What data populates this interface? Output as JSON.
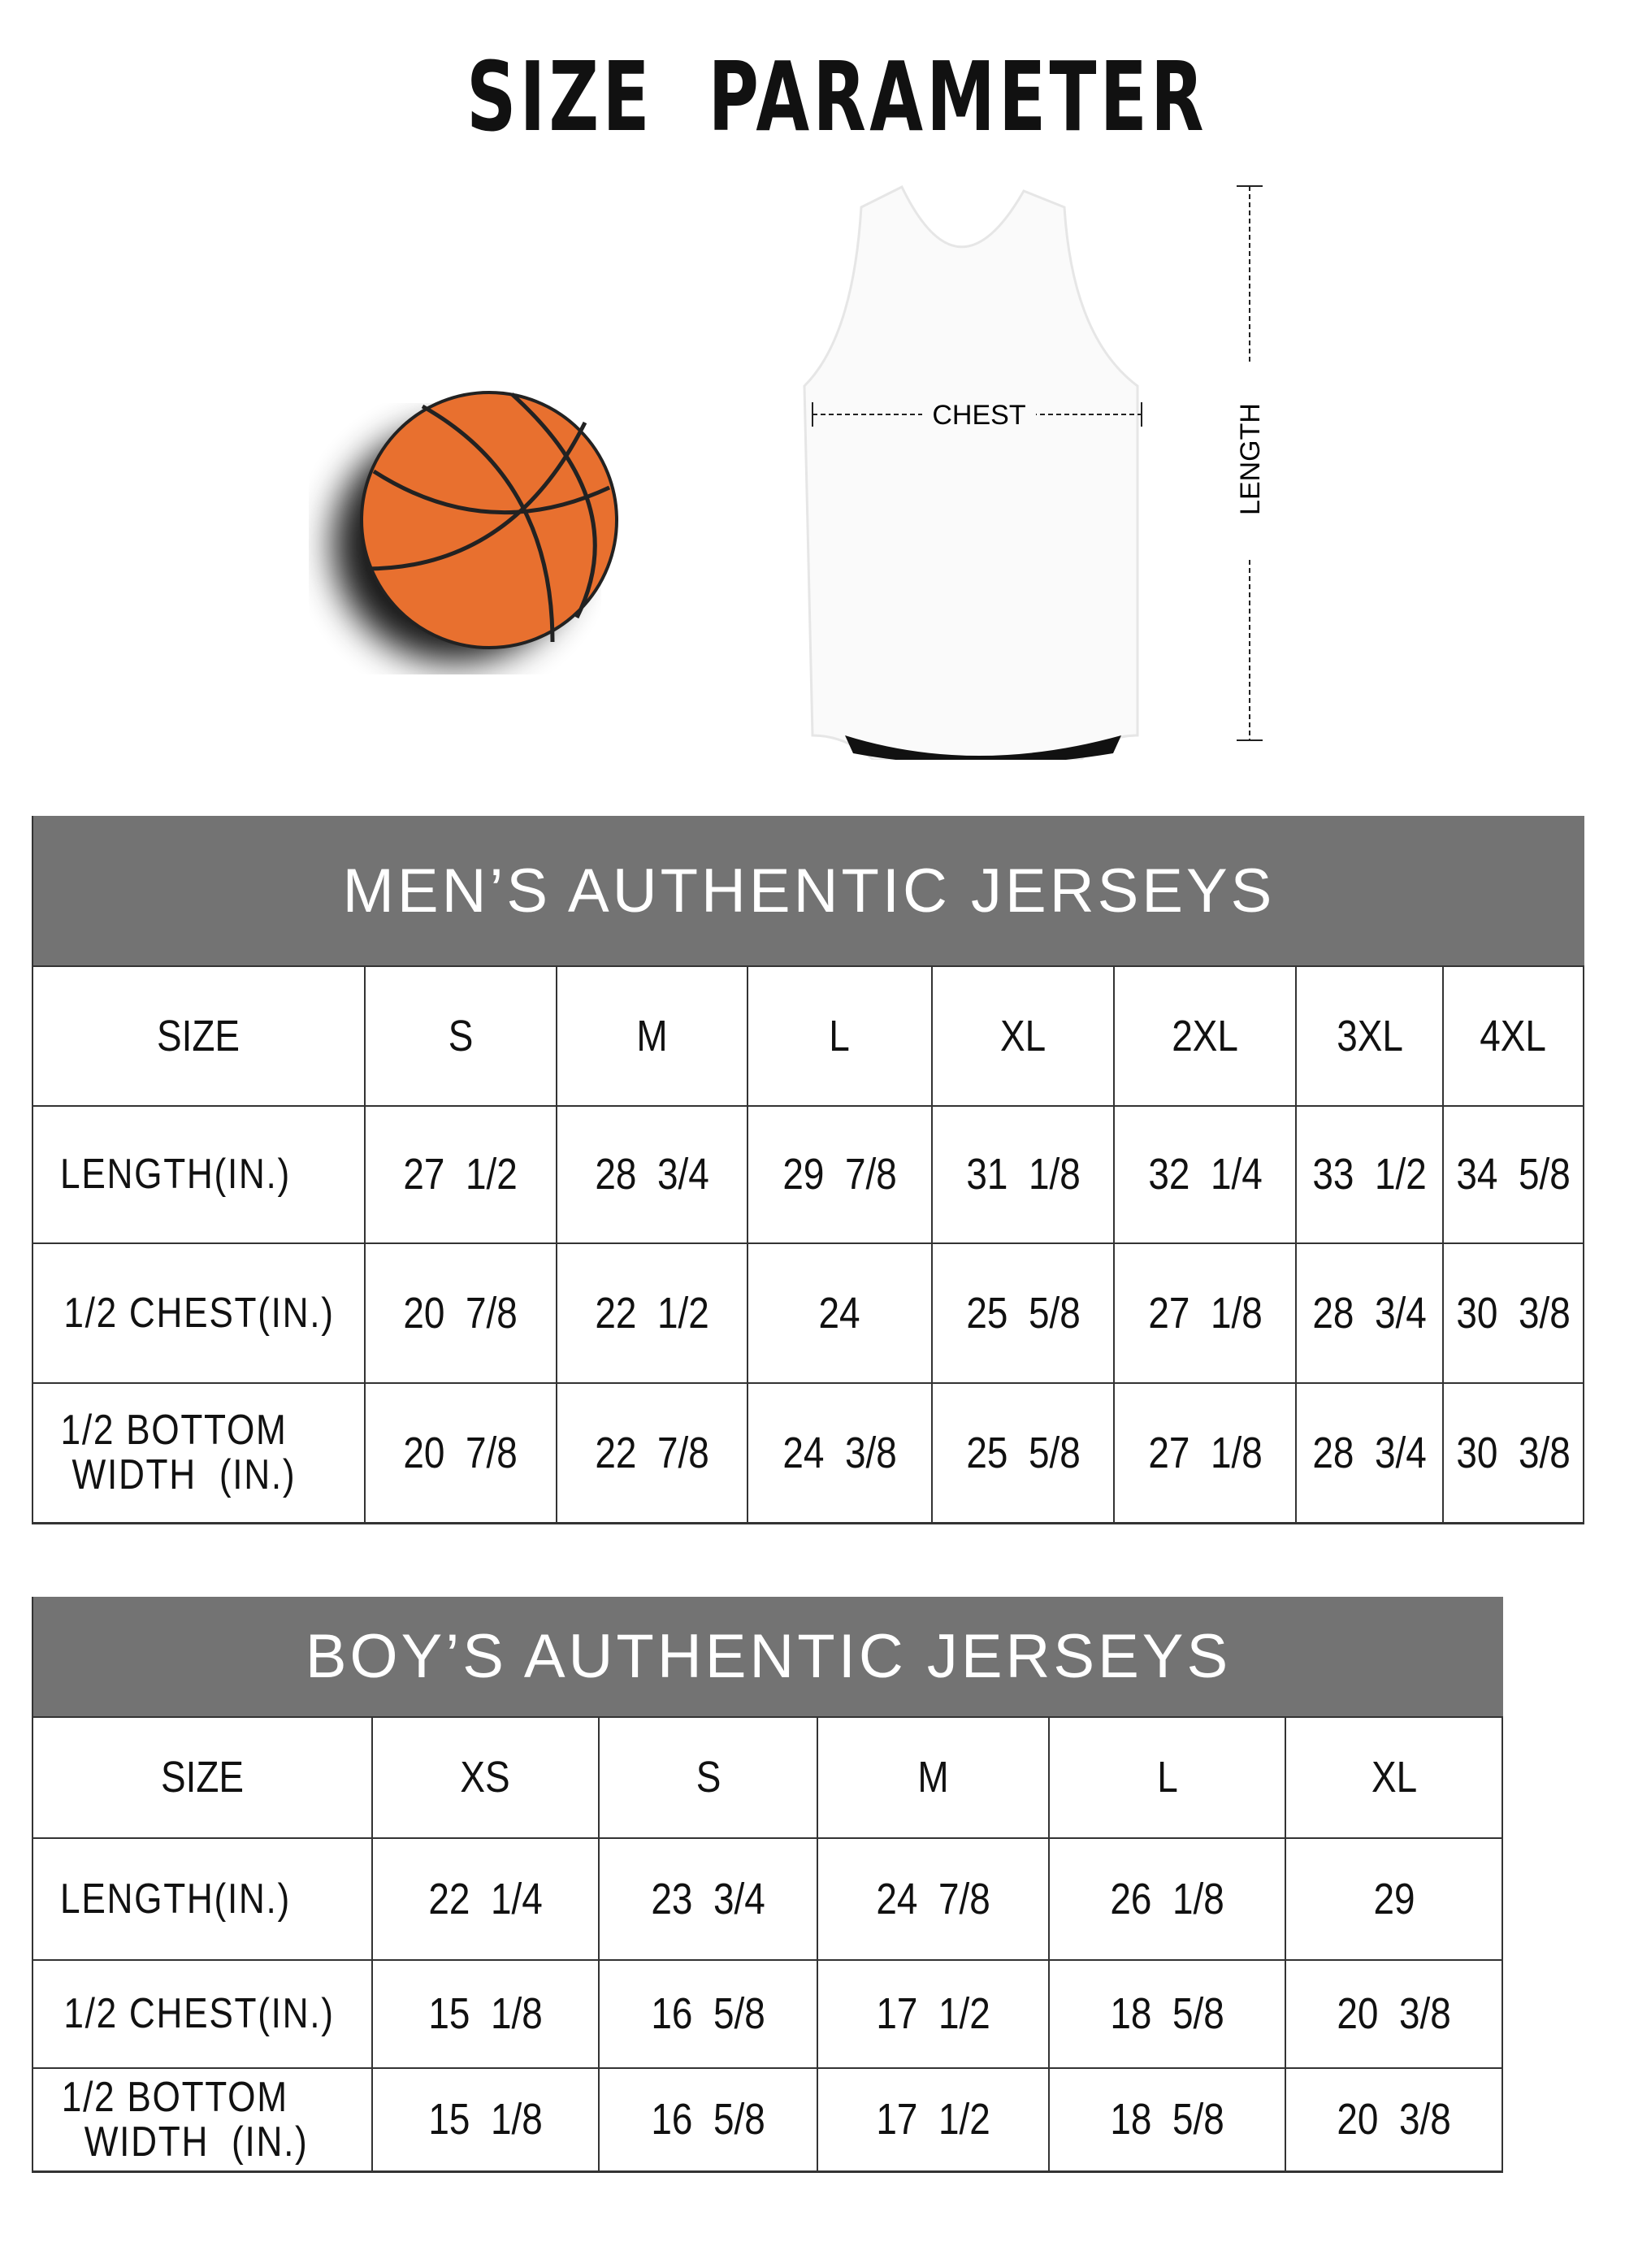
{
  "title": "SIZE  PARAMETER",
  "diagram": {
    "chest_label": "CHEST",
    "length_label": "LENGTH",
    "ball_color": "#e8702f"
  },
  "colors": {
    "band": "#737373"
  },
  "men": {
    "heading": "MEN’S AUTHENTIC JERSEYS",
    "header": [
      "SIZE",
      "S",
      "M",
      "L",
      "XL",
      "2XL",
      "3XL",
      "4XL"
    ],
    "rows": [
      [
        "LENGTH(IN.)",
        "27  1/2",
        "28  3/4",
        "29  7/8",
        "31  1/8",
        "32  1/4",
        "33  1/2",
        "34  5/8"
      ],
      [
        "1/2 CHEST(IN.)",
        "20  7/8",
        "22  1/2",
        "24",
        "25  5/8",
        "27  1/8",
        "28  3/4",
        "30  3/8"
      ],
      [
        "1/2 BOTTOM\n WIDTH  (IN.)",
        "20  7/8",
        "22  7/8",
        "24  3/8",
        "25  5/8",
        "27  1/8",
        "28  3/4",
        "30  3/8"
      ]
    ]
  },
  "boys": {
    "heading": "BOY’S AUTHENTIC JERSEYS",
    "header": [
      "SIZE",
      "XS",
      "S",
      "M",
      "L",
      "XL"
    ],
    "rows": [
      [
        "LENGTH(IN.)",
        "22  1/4",
        "23  3/4",
        "24  7/8",
        "26  1/8",
        "29"
      ],
      [
        "1/2 CHEST(IN.)",
        "15  1/8",
        "16  5/8",
        "17  1/2",
        "18  5/8",
        "20  3/8"
      ],
      [
        "1/2 BOTTOM\n  WIDTH  (IN.)",
        "15  1/8",
        "16  5/8",
        "17  1/2",
        "18  5/8",
        "20  3/8"
      ]
    ]
  }
}
